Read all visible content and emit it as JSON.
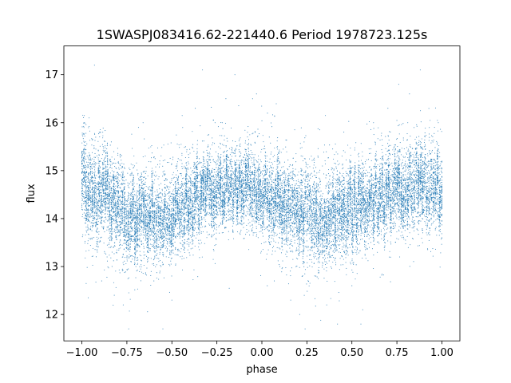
{
  "chart_data": {
    "type": "scatter",
    "title": "1SWASPJ083416.62-221440.6 Period 1978723.125s",
    "xlabel": "phase",
    "ylabel": "flux",
    "xlim": [
      -1.1,
      1.1
    ],
    "ylim": [
      11.45,
      17.6
    ],
    "x_ticks": [
      -1.0,
      -0.75,
      -0.5,
      -0.25,
      0.0,
      0.25,
      0.5,
      0.75,
      1.0
    ],
    "x_tick_labels": [
      "−1.00",
      "−0.75",
      "−0.50",
      "−0.25",
      "0.00",
      "0.25",
      "0.50",
      "0.75",
      "1.00"
    ],
    "y_ticks": [
      12,
      13,
      14,
      15,
      16,
      17
    ],
    "y_tick_labels": [
      "12",
      "13",
      "14",
      "15",
      "16",
      "17"
    ],
    "grid": false,
    "legend": "none",
    "marker_color": "#1f77b4",
    "series": [
      {
        "envelope": {
          "x": [
            -1.0,
            -0.9,
            -0.8,
            -0.75,
            -0.7,
            -0.6,
            -0.5,
            -0.4,
            -0.3,
            -0.2,
            -0.1,
            0.0,
            0.1,
            0.2,
            0.25,
            0.3,
            0.4,
            0.5,
            0.6,
            0.7,
            0.8,
            0.9,
            1.0
          ],
          "center": [
            14.75,
            14.45,
            14.2,
            14.05,
            14.05,
            14.1,
            14.15,
            14.35,
            14.55,
            14.7,
            14.65,
            14.55,
            14.4,
            14.2,
            14.05,
            14.05,
            14.1,
            14.2,
            14.35,
            14.55,
            14.7,
            14.65,
            14.55
          ],
          "spread": [
            0.75,
            0.65,
            0.7,
            0.7,
            0.65,
            0.6,
            0.6,
            0.6,
            0.55,
            0.55,
            0.55,
            0.6,
            0.6,
            0.65,
            0.7,
            0.7,
            0.65,
            0.6,
            0.6,
            0.6,
            0.6,
            0.65,
            0.6
          ]
        },
        "points": [
          [
            -0.98,
            15.6
          ],
          [
            -0.96,
            16.1
          ],
          [
            -0.93,
            17.2
          ],
          [
            -0.9,
            15.8
          ],
          [
            -0.86,
            13.2
          ],
          [
            -0.82,
            12.4
          ],
          [
            -0.77,
            12.2
          ],
          [
            -0.74,
            11.7
          ],
          [
            -0.7,
            13.0
          ],
          [
            -0.66,
            16.0
          ],
          [
            -0.6,
            12.7
          ],
          [
            -0.55,
            11.7
          ],
          [
            -0.5,
            12.3
          ],
          [
            -0.44,
            15.9
          ],
          [
            -0.37,
            16.3
          ],
          [
            -0.33,
            17.1
          ],
          [
            -0.26,
            16.0
          ],
          [
            -0.2,
            16.5
          ],
          [
            -0.15,
            17.0
          ],
          [
            -0.08,
            15.8
          ],
          [
            -0.03,
            16.6
          ],
          [
            0.03,
            12.6
          ],
          [
            0.1,
            13.0
          ],
          [
            0.16,
            12.3
          ],
          [
            0.21,
            12.0
          ],
          [
            0.24,
            11.7
          ],
          [
            0.3,
            12.8
          ],
          [
            0.36,
            12.2
          ],
          [
            0.42,
            11.8
          ],
          [
            0.5,
            12.6
          ],
          [
            0.55,
            11.8
          ],
          [
            0.62,
            16.0
          ],
          [
            0.7,
            16.3
          ],
          [
            0.76,
            16.8
          ],
          [
            0.82,
            16.6
          ],
          [
            0.88,
            17.1
          ],
          [
            0.93,
            15.9
          ],
          [
            0.98,
            16.0
          ],
          [
            -0.89,
            12.7
          ],
          [
            0.56,
            12.1
          ]
        ]
      }
    ]
  }
}
